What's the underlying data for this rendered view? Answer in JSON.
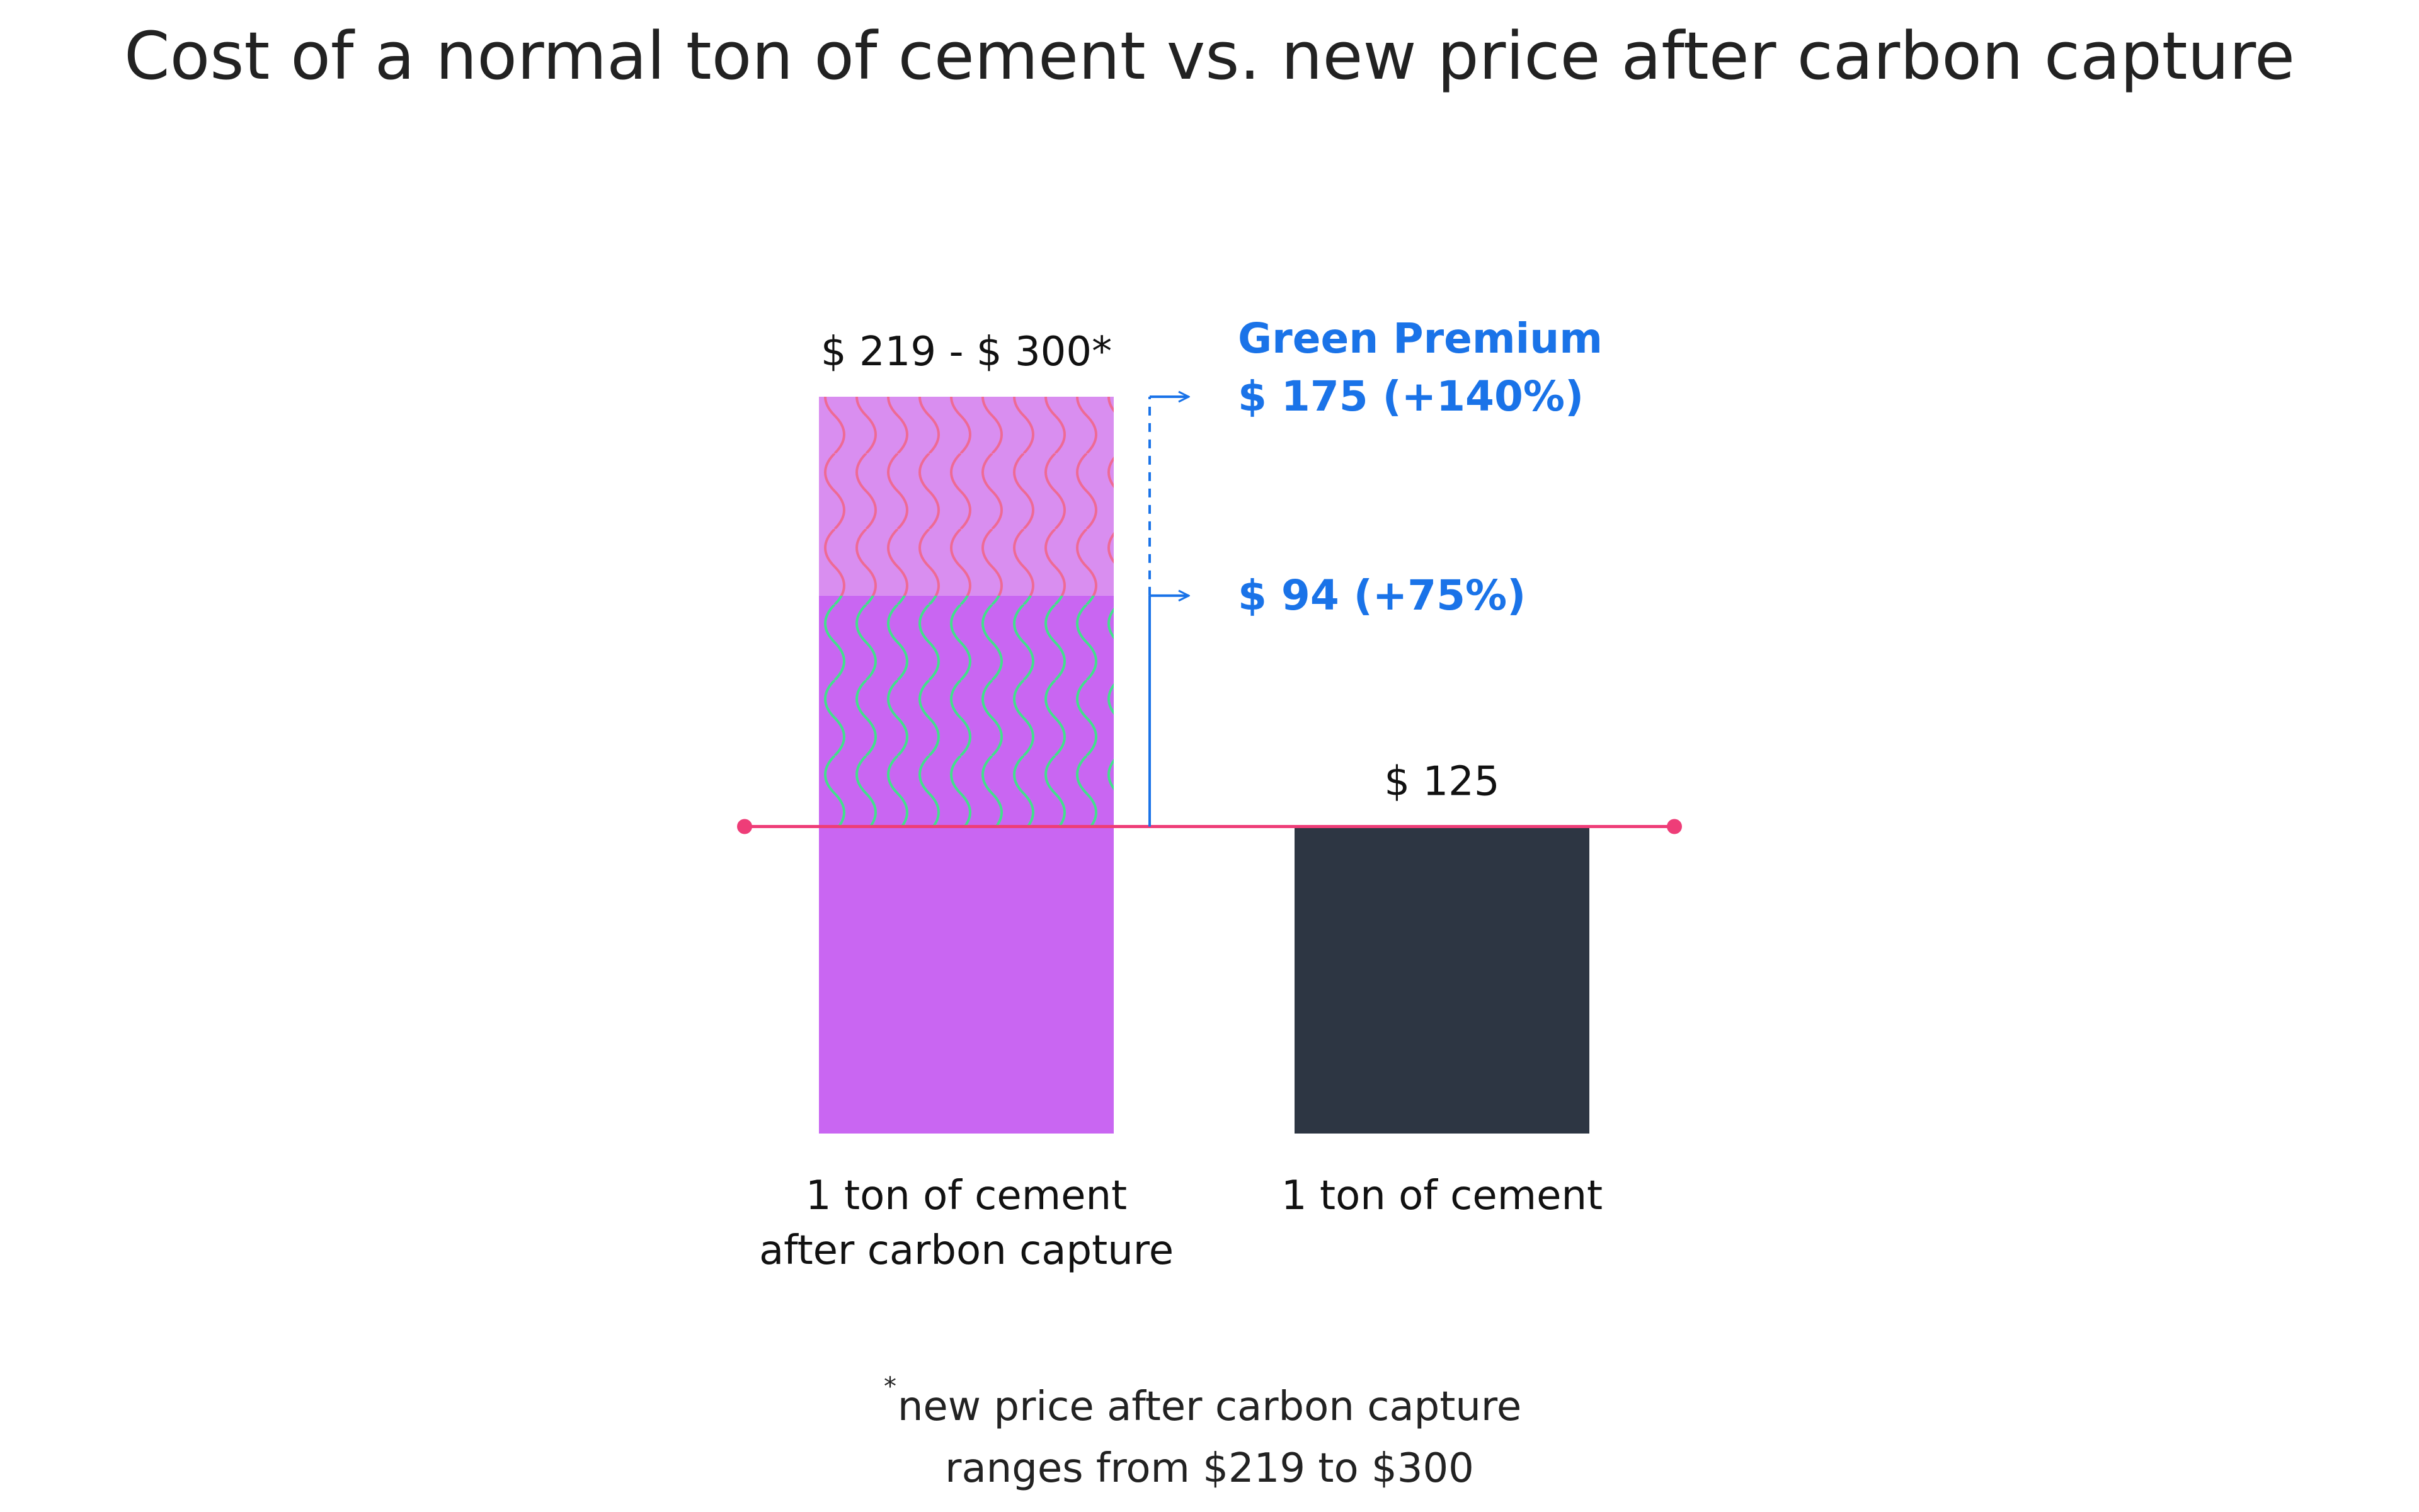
{
  "chart_data": {
    "type": "bar",
    "title": "Cost of a normal ton of cement vs. new price after carbon capture",
    "categories": [
      "1 ton of cement after carbon capture",
      "1 ton of cement"
    ],
    "category_lines": [
      [
        "1 ton of cement",
        "after carbon capture"
      ],
      [
        "1 ton of cement"
      ]
    ],
    "values": [
      [
        219,
        300
      ],
      125
    ],
    "baseline_value": 125,
    "value_labels": [
      "$ 219 - $ 300*",
      "$ 125"
    ],
    "segments": [
      {
        "from": 0,
        "to": 125,
        "color": "#c966f2"
      },
      {
        "from": 125,
        "to": 219,
        "color": "#c966f2",
        "pattern": "wavy",
        "pattern_color": "#42e08c"
      },
      {
        "from": 219,
        "to": 300,
        "color": "#d98ef0",
        "pattern": "wavy",
        "pattern_color": "#ee6a95"
      }
    ],
    "bar_colors": [
      "#c966f2",
      "#2d3643"
    ],
    "baseline_color": "#ee3d78",
    "annotation_color": "#1a73e8",
    "annotations": {
      "title": "Green Premium",
      "items": [
        {
          "value": 300,
          "text": "$ 175 (+140%)"
        },
        {
          "value": 219,
          "text": "$ 94 (+75%)"
        }
      ]
    },
    "ylim": [
      0,
      300
    ],
    "footnote_marker": "*",
    "footnote": [
      "new price after carbon capture",
      "ranges from $219 to $300"
    ]
  }
}
